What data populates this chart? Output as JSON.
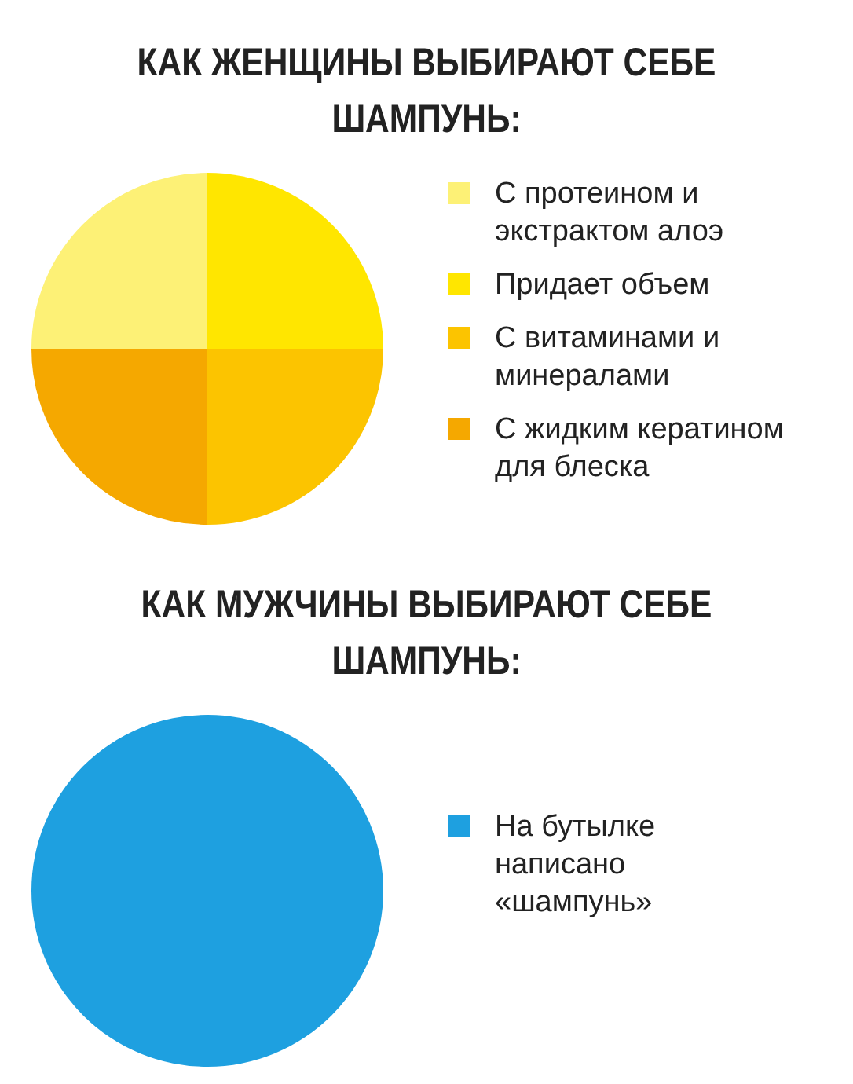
{
  "chart_data": [
    {
      "type": "pie",
      "title": "КАК ЖЕНЩИНЫ ВЫБИРАЮТ СЕБЕ ШАМПУНЬ:",
      "categories": [
        "С протеином и экстрактом алоэ",
        "Придает объем",
        "С витаминами и минералами",
        "С жидким кератином для блеска"
      ],
      "values": [
        25,
        25,
        25,
        25
      ],
      "colors": [
        "#fdf176",
        "#ffe600",
        "#fcc400",
        "#f5a800"
      ],
      "legend": "right"
    },
    {
      "type": "pie",
      "title": "КАК МУЖЧИНЫ ВЫБИРАЮТ СЕБЕ ШАМПУНЬ:",
      "categories": [
        "На бутылке написано «шампунь»"
      ],
      "values": [
        100
      ],
      "colors": [
        "#1ea0e0"
      ],
      "legend": "right"
    }
  ]
}
